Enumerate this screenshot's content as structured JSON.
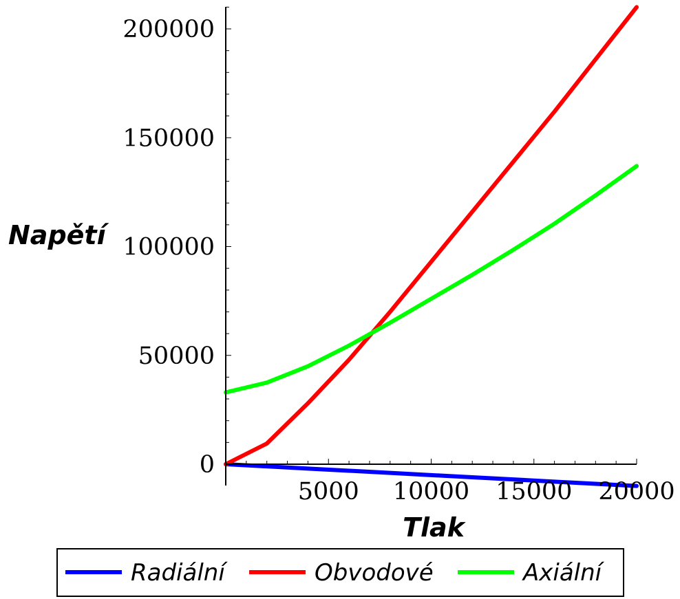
{
  "chart_data": {
    "type": "line",
    "xlabel": "Tlak",
    "ylabel": "Napětí",
    "xlim": [
      0,
      20000
    ],
    "ylim": [
      -10000,
      210000
    ],
    "x_ticks": [
      "5000",
      "10000",
      "15000",
      "20000"
    ],
    "y_ticks": [
      "0",
      "50000",
      "100000",
      "150000",
      "200000"
    ],
    "x_tick_values": [
      5000,
      10000,
      15000,
      20000
    ],
    "y_tick_values": [
      0,
      50000,
      100000,
      150000,
      200000
    ],
    "legend_position": "bottom",
    "grid": false,
    "x": [
      0,
      2000,
      4000,
      6000,
      8000,
      10000,
      12000,
      14000,
      16000,
      18000,
      20000
    ],
    "series": [
      {
        "name": "Radiální",
        "color": "#0000ff",
        "values": [
          0,
          -1000,
          -2000,
          -3000,
          -4000,
          -5000,
          -6000,
          -7000,
          -8000,
          -9000,
          -10000
        ]
      },
      {
        "name": "Obvodové",
        "color": "#ff0000",
        "values": [
          0,
          9500,
          28000,
          48000,
          70000,
          93000,
          116000,
          139000,
          162000,
          186000,
          210000
        ]
      },
      {
        "name": "Axiální",
        "color": "#00ff00",
        "values": [
          33000,
          37500,
          45000,
          54500,
          65000,
          76000,
          87000,
          98500,
          110500,
          123500,
          137000
        ]
      }
    ]
  }
}
